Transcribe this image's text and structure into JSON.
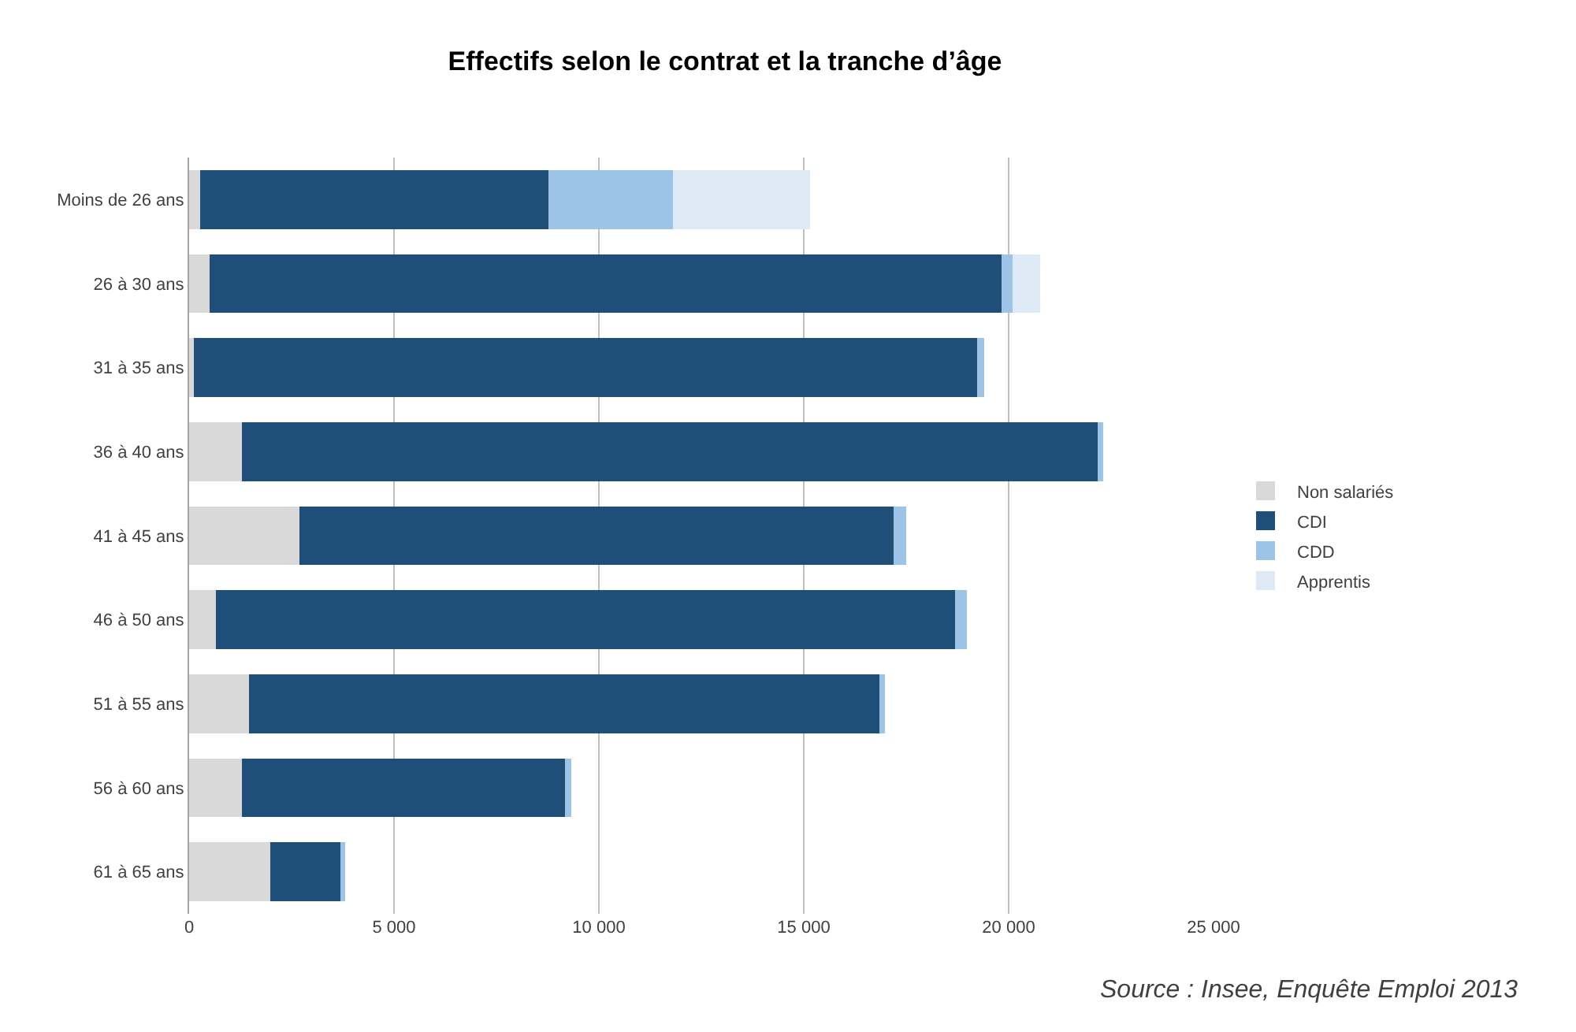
{
  "chart_data": {
    "type": "bar",
    "orientation": "horizontal",
    "stacked": true,
    "title": "Effectifs selon le contrat et la tranche d’âge",
    "categories": [
      "Moins de 26 ans",
      "26 à 30 ans",
      "31 à 35 ans",
      "36 à 40 ans",
      "41 à 45 ans",
      "46 à 50 ans",
      "51 à 55 ans",
      "56 à 60 ans",
      "61 à 65 ans"
    ],
    "series": [
      {
        "name": "Non salariés",
        "color": "#d9d9d9",
        "values": [
          260,
          500,
          120,
          1290,
          2690,
          650,
          1460,
          1290,
          1980
        ]
      },
      {
        "name": "CDI",
        "color": "#1f4e79",
        "values": [
          8500,
          19320,
          19120,
          20880,
          14500,
          18040,
          15390,
          7880,
          1720
        ]
      },
      {
        "name": "CDD",
        "color": "#9dc3e6",
        "values": [
          3050,
          270,
          170,
          130,
          310,
          300,
          130,
          150,
          100
        ]
      },
      {
        "name": "Apprentis",
        "color": "#dde9f5",
        "values": [
          3350,
          680,
          0,
          0,
          0,
          0,
          0,
          0,
          0
        ]
      }
    ],
    "xlim": [
      0,
      25000
    ],
    "xticks": [
      0,
      {
        "value": 5000,
        "label": "5 000"
      },
      {
        "value": 10000,
        "label": "10 000"
      },
      {
        "value": 15000,
        "label": "15 000"
      },
      {
        "value": 20000,
        "label": "20 000"
      },
      {
        "value": 25000,
        "label": "25 000"
      }
    ],
    "grid": "x",
    "legend": "right",
    "annotations": [
      "Source : Insee, Enquête Emploi 2013"
    ]
  }
}
